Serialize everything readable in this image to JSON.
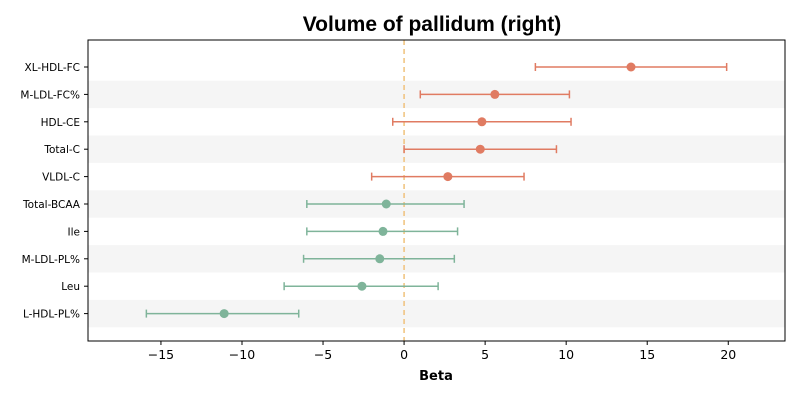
{
  "chart_data": {
    "type": "forest",
    "title": "Volume of pallidum (right)",
    "xlabel": "Beta",
    "xlim": [
      -19.5,
      23.5
    ],
    "xticks": [
      -15,
      -10,
      -5,
      0,
      5,
      10,
      15,
      20
    ],
    "xtick_labels": [
      "−15",
      "−10",
      "−5",
      "0",
      "5",
      "10",
      "15",
      "20"
    ],
    "reference_line": 0,
    "colors": {
      "positive": "#e07b62",
      "negative": "#7fb49a",
      "reference": "#f0c27b",
      "band": "#f5f5f5"
    },
    "rows": [
      {
        "label": "XL-HDL-FC",
        "beta": 14.0,
        "lower": 8.1,
        "upper": 19.9
      },
      {
        "label": "M-LDL-FC%",
        "beta": 5.6,
        "lower": 1.0,
        "upper": 10.2
      },
      {
        "label": "HDL-CE",
        "beta": 4.8,
        "lower": -0.7,
        "upper": 10.3
      },
      {
        "label": "Total-C",
        "beta": 4.7,
        "lower": 0.0,
        "upper": 9.4
      },
      {
        "label": "VLDL-C",
        "beta": 2.7,
        "lower": -2.0,
        "upper": 7.4
      },
      {
        "label": "Total-BCAA",
        "beta": -1.1,
        "lower": -6.0,
        "upper": 3.7
      },
      {
        "label": "Ile",
        "beta": -1.3,
        "lower": -6.0,
        "upper": 3.3
      },
      {
        "label": "M-LDL-PL%",
        "beta": -1.5,
        "lower": -6.2,
        "upper": 3.1
      },
      {
        "label": "Leu",
        "beta": -2.6,
        "lower": -7.4,
        "upper": 2.1
      },
      {
        "label": "L-HDL-PL%",
        "beta": -11.1,
        "lower": -15.9,
        "upper": -6.5
      }
    ]
  }
}
